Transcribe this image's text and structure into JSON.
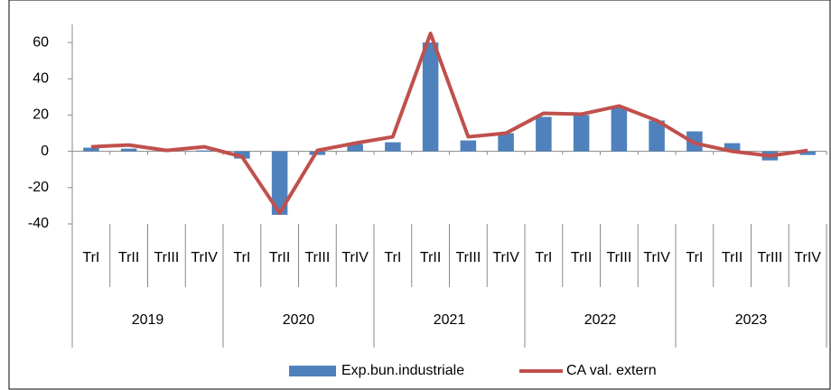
{
  "chart_data": {
    "type": "bar-line",
    "categories": [
      "TrI",
      "TrII",
      "TrIII",
      "TrIV",
      "TrI",
      "TrII",
      "TrIII",
      "TrIV",
      "TrI",
      "TrII",
      "TrIII",
      "TrIV",
      "TrI",
      "TrII",
      "TrIII",
      "TrIV",
      "TrI",
      "TrII",
      "TrIII",
      "TrIV"
    ],
    "category_groups": [
      "2019",
      "2020",
      "2021",
      "2022",
      "2023"
    ],
    "series": [
      {
        "name": "Exp.bun.industriale",
        "type": "bar",
        "color": "#4f81bd",
        "values": [
          2,
          1.5,
          0.5,
          0.5,
          -4,
          -35,
          -2,
          4,
          5,
          60,
          6,
          10,
          19,
          20,
          24,
          17,
          11,
          4.5,
          -5,
          -2
        ]
      },
      {
        "name": "CA val. extern",
        "type": "line",
        "color": "#c0504d",
        "values": [
          2.5,
          3.5,
          0.5,
          2.5,
          -3,
          -34,
          0.5,
          4.5,
          8,
          65,
          8,
          10,
          21,
          20.5,
          25,
          17,
          4.5,
          0,
          -2.5,
          0.5
        ]
      }
    ],
    "ylim": [
      -40,
      70
    ],
    "yticks": [
      -40,
      -20,
      0,
      20,
      40,
      60
    ],
    "grid": false,
    "legend": "bottom"
  }
}
